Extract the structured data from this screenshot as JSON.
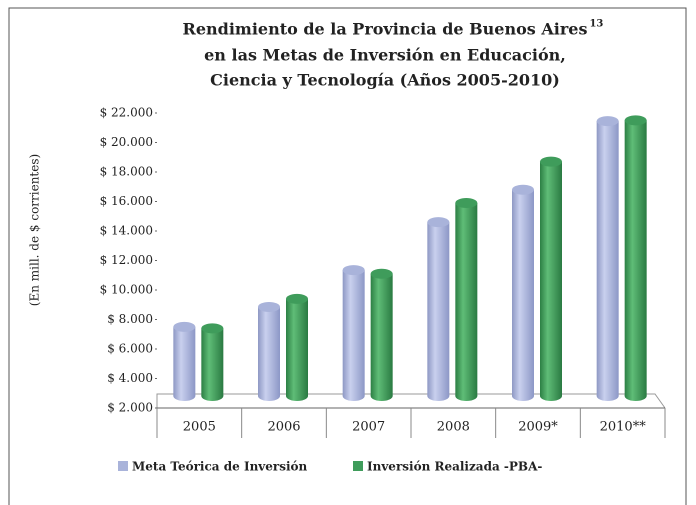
{
  "chart_data": {
    "type": "bar",
    "title": [
      "Rendimiento de la Provincia  de Buenos Aires",
      "en las Metas de Inversión en Educación,",
      "Ciencia y Tecnología (Años 2005-2010)"
    ],
    "title_superscript": "13",
    "y_label": "(En mill. de $ corrientes)",
    "categories": [
      "2005",
      "2006",
      "2007",
      "2008",
      "2009*",
      "2010**"
    ],
    "series": [
      {
        "name": "Meta Teórica de Inversión",
        "color": "#a9b3da",
        "values": [
          7500,
          8850,
          11350,
          14600,
          16800,
          21450
        ]
      },
      {
        "name": "Inversión Realizada -PBA-",
        "color": "#3f9c5b",
        "values": [
          7400,
          9400,
          11100,
          15900,
          18700,
          21500
        ]
      }
    ],
    "ylim": [
      2000,
      22000
    ],
    "yticks": [
      {
        "value": 2000,
        "label": "$ 2.000"
      },
      {
        "value": 4000,
        "label": "$ 4.000"
      },
      {
        "value": 6000,
        "label": "$ 6.000"
      },
      {
        "value": 8000,
        "label": "$ 8.000"
      },
      {
        "value": 10000,
        "label": "$ 10.000"
      },
      {
        "value": 12000,
        "label": "$ 12.000"
      },
      {
        "value": 14000,
        "label": "$ 14.000"
      },
      {
        "value": 16000,
        "label": "$ 16.000"
      },
      {
        "value": 18000,
        "label": "$ 18.000"
      },
      {
        "value": 20000,
        "label": "$ 20.000"
      },
      {
        "value": 22000,
        "label": "$ 22.000"
      }
    ],
    "legend": "bottom-left"
  }
}
